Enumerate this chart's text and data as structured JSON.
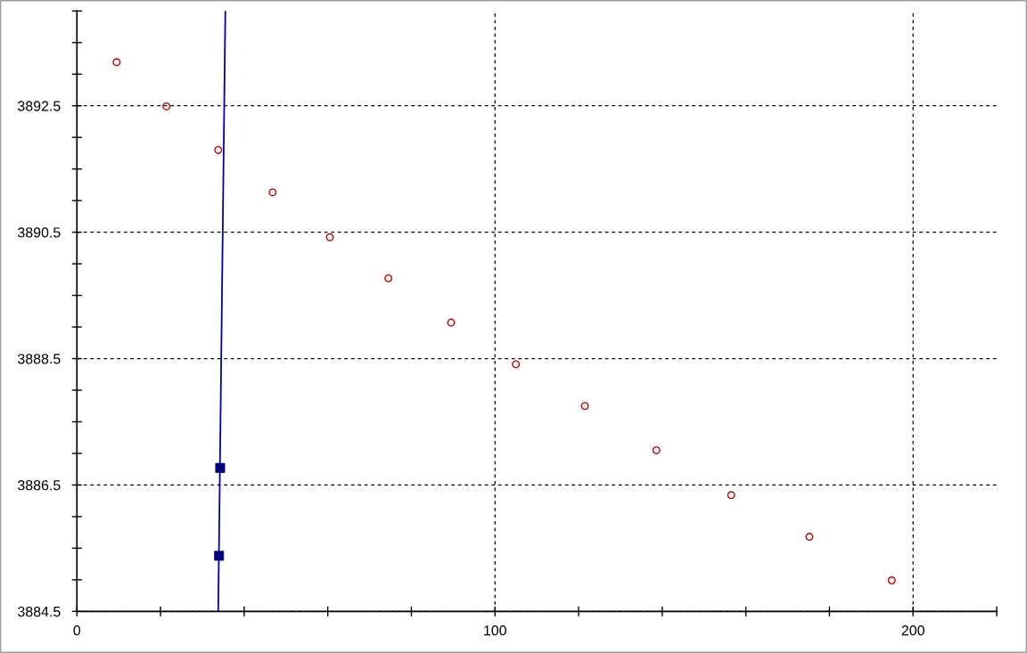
{
  "chart_data": {
    "type": "scatter",
    "xlim": [
      0,
      220
    ],
    "xticks": [
      0,
      {
        "value": 20,
        "label": null
      },
      {
        "value": 40,
        "label": null
      },
      {
        "value": 60,
        "label": null
      },
      {
        "value": 80,
        "label": null
      },
      100,
      {
        "value": 120,
        "label": null
      },
      {
        "value": 140,
        "label": null
      },
      {
        "value": 160,
        "label": null
      },
      {
        "value": 180,
        "label": null
      },
      200,
      {
        "value": 220,
        "label": null
      }
    ],
    "ylim": [
      3884.5,
      3894
    ],
    "yticks": [
      3884.5,
      {
        "value": 3885,
        "label": null
      },
      {
        "value": 3885.5,
        "label": null
      },
      {
        "value": 3886,
        "label": null
      },
      3886.5,
      {
        "value": 3887,
        "label": null
      },
      {
        "value": 3887.5,
        "label": null
      },
      {
        "value": 3888,
        "label": null
      },
      3888.5,
      {
        "value": 3889,
        "label": null
      },
      {
        "value": 3889.5,
        "label": null
      },
      {
        "value": 3890,
        "label": null
      },
      3890.5,
      {
        "value": 3891,
        "label": null
      },
      {
        "value": 3891.5,
        "label": null
      },
      {
        "value": 3892,
        "label": null
      },
      3892.5,
      {
        "value": 3893,
        "label": null
      },
      {
        "value": 3893.5,
        "label": null
      },
      {
        "value": 3894,
        "label": null
      }
    ],
    "grid": true,
    "series": [
      {
        "marker": "circle",
        "color": "#c00000",
        "x": [
          9.5,
          21.4,
          33.8,
          46.8,
          60.5,
          74.5,
          89.5,
          105.0,
          121.5,
          138.6,
          156.5,
          175.2,
          194.9
        ],
        "values": [
          3893.19,
          3892.49,
          3891.8,
          3891.13,
          3890.42,
          3889.77,
          3889.07,
          3888.41,
          3887.75,
          3887.05,
          3886.34,
          3885.68,
          3884.99
        ]
      },
      {
        "marker": "square",
        "color": "#000080",
        "x": [
          34.26,
          33.99
        ],
        "values": [
          3886.77,
          3885.38
        ]
      },
      {
        "type": "line",
        "color": "#0000a8",
        "x": [
          33.8,
          35.5
        ],
        "values": [
          3884.5,
          3894
        ]
      }
    ]
  }
}
